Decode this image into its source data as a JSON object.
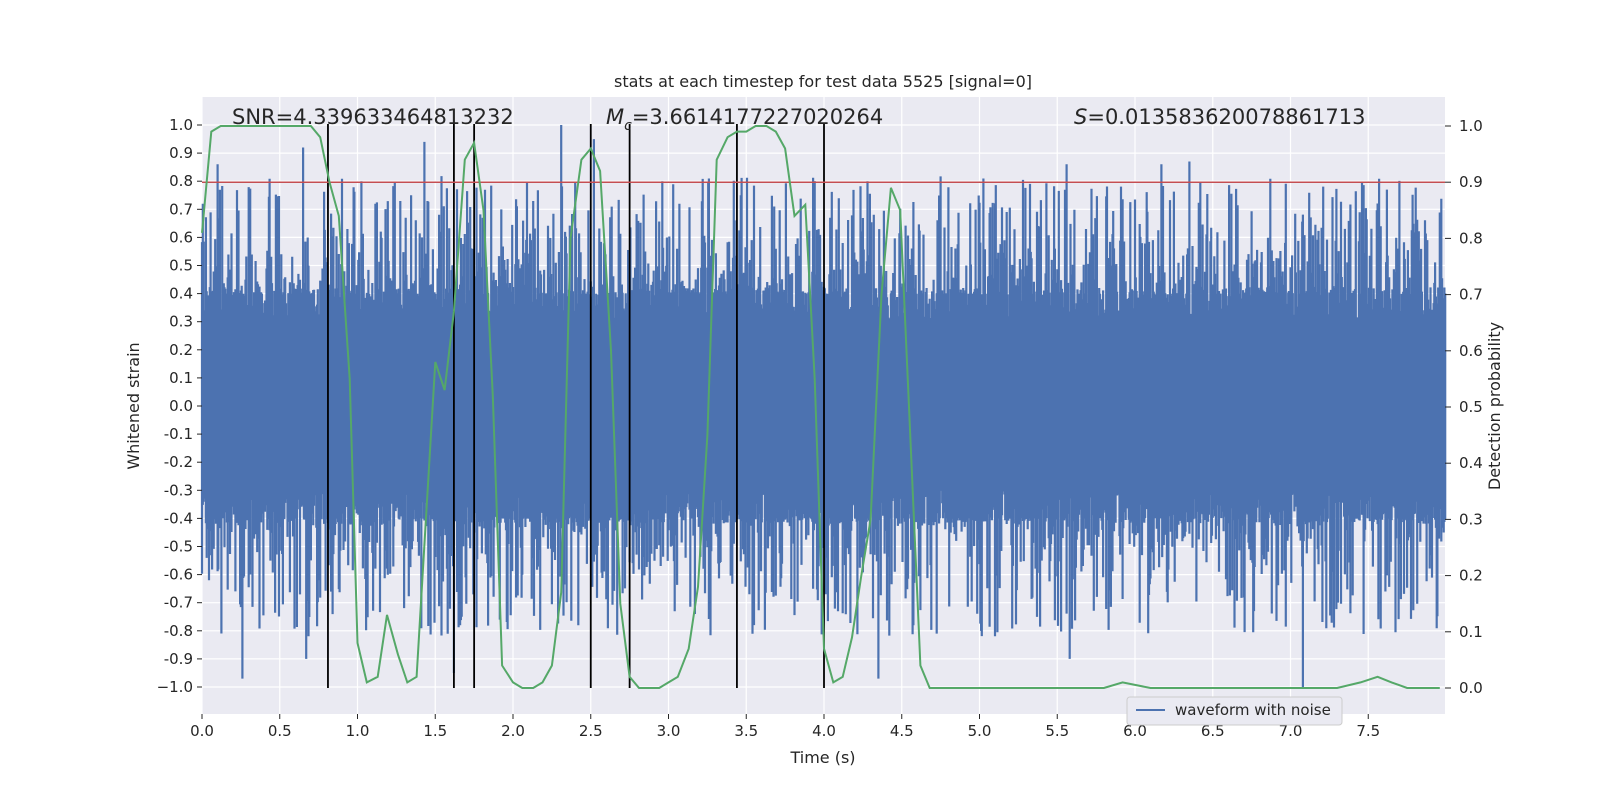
{
  "chart_data": {
    "type": "line",
    "title": "stats at each timestep for test data 5525 [signal=0]",
    "xlabel": "Time (s)",
    "ylabel": "Whitened strain",
    "y2label": "Detection probability",
    "xlim": [
      0.0,
      8.0
    ],
    "ylim": [
      -1.1,
      1.1
    ],
    "y2lim": [
      -0.05,
      1.05
    ],
    "xticks": [
      "0.0",
      "0.5",
      "1.0",
      "1.5",
      "2.0",
      "2.5",
      "3.0",
      "3.5",
      "4.0",
      "4.5",
      "5.0",
      "5.5",
      "6.0",
      "6.5",
      "7.0",
      "7.5"
    ],
    "xtick_values": [
      0.0,
      0.5,
      1.0,
      1.5,
      2.0,
      2.5,
      3.0,
      3.5,
      4.0,
      4.5,
      5.0,
      5.5,
      6.0,
      6.5,
      7.0,
      7.5
    ],
    "yticks": [
      "1.0",
      "0.9",
      "0.8",
      "0.7",
      "0.6",
      "0.5",
      "0.4",
      "0.3",
      "0.2",
      "0.1",
      "0.0",
      "-0.1",
      "-0.2",
      "-0.3",
      "-0.4",
      "-0.5",
      "-0.6",
      "-0.7",
      "-0.8",
      "-0.9",
      "−1.0"
    ],
    "ytick_values": [
      1.0,
      0.9,
      0.8,
      0.7,
      0.6,
      0.5,
      0.4,
      0.3,
      0.2,
      0.1,
      0.0,
      -0.1,
      -0.2,
      -0.3,
      -0.4,
      -0.5,
      -0.6,
      -0.7,
      -0.8,
      -0.9,
      -1.0
    ],
    "y2ticks": [
      "1.0",
      "0.9",
      "0.8",
      "0.7",
      "0.6",
      "0.5",
      "0.4",
      "0.3",
      "0.2",
      "0.1",
      "0.0"
    ],
    "y2tick_values": [
      1.0,
      0.9,
      0.8,
      0.7,
      0.6,
      0.5,
      0.4,
      0.3,
      0.2,
      0.1,
      0.0
    ],
    "annotations": {
      "snr": "SNR=4.339633464813232",
      "mc_symbol": "M",
      "mc_sub": "c",
      "mc_value": "=3.6614177227020264",
      "s_symbol": "S",
      "s_value": "=0.013583620078861713"
    },
    "legend": {
      "label": "waveform with noise",
      "position": "lower-right"
    },
    "threshold": 0.9,
    "vertical_lines_x": [
      0.81,
      1.62,
      1.75,
      2.5,
      2.75,
      3.44,
      4.0
    ],
    "strain": {
      "name": "waveform with noise",
      "t_start": 0.0,
      "t_end": 8.0,
      "samples": 1600,
      "core_amplitude": 0.4,
      "outlier_spikes": [
        [
          0.1,
          0.86
        ],
        [
          0.26,
          -0.97
        ],
        [
          0.65,
          0.92
        ],
        [
          0.67,
          -0.9
        ],
        [
          1.43,
          0.94
        ],
        [
          1.62,
          -0.95
        ],
        [
          2.31,
          1.0
        ],
        [
          2.52,
          0.95
        ],
        [
          4.28,
          0.8
        ],
        [
          4.35,
          -0.97
        ],
        [
          5.56,
          0.86
        ],
        [
          5.58,
          -0.9
        ],
        [
          6.17,
          0.86
        ],
        [
          6.35,
          0.87
        ],
        [
          7.08,
          -1.0
        ],
        [
          7.08,
          0.6
        ],
        [
          7.62,
          0.77
        ]
      ]
    },
    "detection_probability": {
      "x": [
        0.0,
        0.06,
        0.12,
        0.2,
        0.3,
        0.4,
        0.5,
        0.6,
        0.7,
        0.76,
        0.82,
        0.88,
        0.95,
        1.0,
        1.06,
        1.13,
        1.19,
        1.26,
        1.32,
        1.38,
        1.44,
        1.5,
        1.56,
        1.62,
        1.69,
        1.75,
        1.81,
        1.87,
        1.93,
        2.0,
        2.06,
        2.13,
        2.19,
        2.25,
        2.31,
        2.37,
        2.44,
        2.5,
        2.56,
        2.63,
        2.69,
        2.75,
        2.81,
        2.88,
        2.94,
        3.0,
        3.06,
        3.13,
        3.19,
        3.25,
        3.31,
        3.38,
        3.44,
        3.5,
        3.56,
        3.63,
        3.69,
        3.75,
        3.81,
        3.88,
        3.94,
        4.0,
        4.06,
        4.12,
        4.18,
        4.24,
        4.3,
        4.37,
        4.43,
        4.49,
        4.55,
        4.62,
        4.68,
        4.74,
        4.8,
        4.87,
        4.93,
        5.0,
        5.2,
        5.4,
        5.6,
        5.8,
        5.92,
        6.1,
        6.3,
        6.5,
        6.8,
        7.1,
        7.3,
        7.45,
        7.56,
        7.65,
        7.75,
        7.96
      ],
      "y": [
        0.81,
        0.99,
        1.0,
        1.0,
        1.0,
        1.0,
        1.0,
        1.0,
        1.0,
        0.98,
        0.9,
        0.84,
        0.55,
        0.08,
        0.01,
        0.02,
        0.13,
        0.06,
        0.01,
        0.02,
        0.3,
        0.58,
        0.53,
        0.67,
        0.94,
        0.97,
        0.85,
        0.52,
        0.04,
        0.01,
        0.0,
        0.0,
        0.01,
        0.04,
        0.17,
        0.8,
        0.94,
        0.96,
        0.92,
        0.6,
        0.15,
        0.02,
        0.0,
        0.0,
        0.0,
        0.01,
        0.02,
        0.07,
        0.18,
        0.45,
        0.94,
        0.98,
        0.99,
        0.99,
        1.0,
        1.0,
        0.99,
        0.96,
        0.84,
        0.86,
        0.55,
        0.07,
        0.01,
        0.02,
        0.09,
        0.2,
        0.3,
        0.7,
        0.89,
        0.85,
        0.48,
        0.04,
        0.0,
        0.0,
        0.0,
        0.0,
        0.0,
        0.0,
        0.0,
        0.0,
        0.0,
        0.0,
        0.01,
        0.0,
        0.0,
        0.0,
        0.0,
        0.0,
        0.0,
        0.01,
        0.02,
        0.01,
        0.0,
        0.0
      ]
    },
    "colors": {
      "strain": "#4c72b0",
      "probability": "#55a868",
      "threshold": "#c44e52",
      "vlines": "#000000",
      "plot_bg": "#eaeaf2",
      "grid": "#ffffff"
    }
  }
}
